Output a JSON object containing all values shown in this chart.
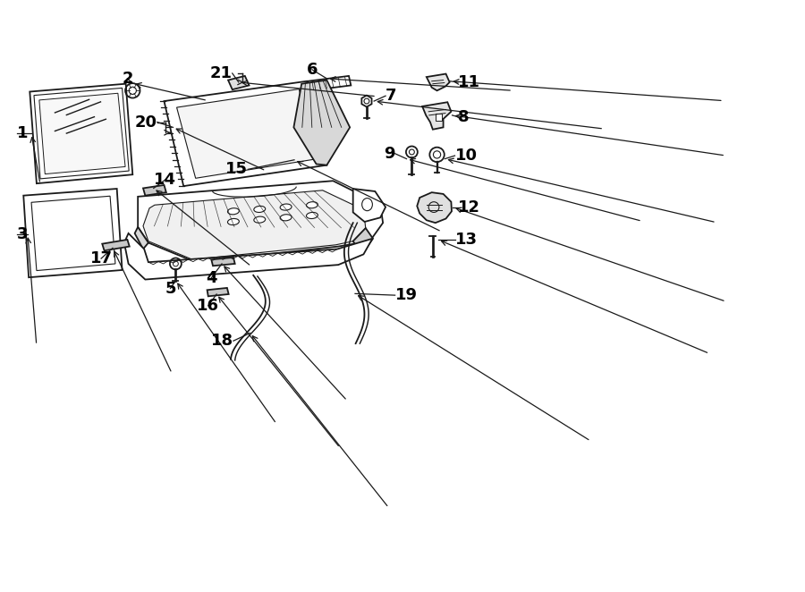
{
  "background_color": "#ffffff",
  "line_color": "#1a1a1a",
  "text_color": "#000000",
  "figsize": [
    9.0,
    6.62
  ],
  "dpi": 100
}
